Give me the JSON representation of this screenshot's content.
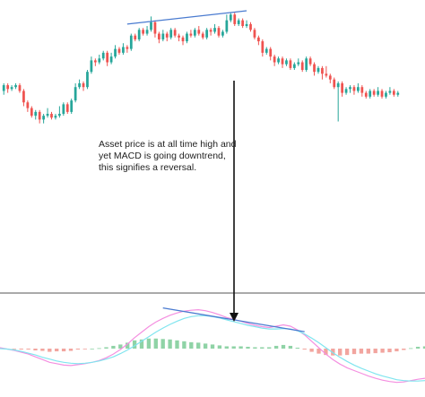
{
  "colors": {
    "background": "#ffffff",
    "bull": "#26a69a",
    "bear": "#ef5350",
    "trendline": "#4a7bd0",
    "arrow": "#111111",
    "separator": "#555555",
    "macd_line": "#f48fe0",
    "signal_line": "#80e5ef",
    "hist_positive": "#8fd3a6",
    "hist_negative": "#f2a59f"
  },
  "annotation": {
    "lines": [
      "Asset price is at all time high and",
      "yet MACD is going downtrend,",
      "this signifies a reversal."
    ]
  },
  "chart_data": [
    {
      "type": "candlestick",
      "title": "",
      "xlabel": "",
      "ylabel": "",
      "grid": false,
      "ylim": [
        0,
        100
      ],
      "candles": [
        {
          "o": 58,
          "c": 61,
          "h": 62,
          "l": 56
        },
        {
          "o": 61,
          "c": 59,
          "h": 62,
          "l": 57
        },
        {
          "o": 59,
          "c": 60,
          "h": 61,
          "l": 58
        },
        {
          "o": 60,
          "c": 61,
          "h": 62,
          "l": 59
        },
        {
          "o": 61,
          "c": 58,
          "h": 62,
          "l": 57
        },
        {
          "o": 58,
          "c": 52,
          "h": 59,
          "l": 50
        },
        {
          "o": 52,
          "c": 49,
          "h": 53,
          "l": 47
        },
        {
          "o": 49,
          "c": 45,
          "h": 50,
          "l": 44
        },
        {
          "o": 45,
          "c": 47,
          "h": 48,
          "l": 43
        },
        {
          "o": 47,
          "c": 43,
          "h": 48,
          "l": 41
        },
        {
          "o": 43,
          "c": 45,
          "h": 46,
          "l": 41
        },
        {
          "o": 45,
          "c": 46,
          "h": 49,
          "l": 44
        },
        {
          "o": 46,
          "c": 44,
          "h": 47,
          "l": 43
        },
        {
          "o": 44,
          "c": 45,
          "h": 46,
          "l": 43
        },
        {
          "o": 45,
          "c": 46,
          "h": 50,
          "l": 44
        },
        {
          "o": 46,
          "c": 51,
          "h": 52,
          "l": 45
        },
        {
          "o": 51,
          "c": 47,
          "h": 52,
          "l": 46
        },
        {
          "o": 47,
          "c": 53,
          "h": 54,
          "l": 46
        },
        {
          "o": 53,
          "c": 60,
          "h": 62,
          "l": 52
        },
        {
          "o": 60,
          "c": 62,
          "h": 64,
          "l": 59
        },
        {
          "o": 62,
          "c": 60,
          "h": 63,
          "l": 58
        },
        {
          "o": 60,
          "c": 68,
          "h": 69,
          "l": 59
        },
        {
          "o": 68,
          "c": 74,
          "h": 76,
          "l": 67
        },
        {
          "o": 74,
          "c": 73,
          "h": 75,
          "l": 71
        },
        {
          "o": 73,
          "c": 75,
          "h": 77,
          "l": 72
        },
        {
          "o": 75,
          "c": 78,
          "h": 79,
          "l": 74
        },
        {
          "o": 78,
          "c": 73,
          "h": 79,
          "l": 71
        },
        {
          "o": 73,
          "c": 76,
          "h": 78,
          "l": 72
        },
        {
          "o": 76,
          "c": 80,
          "h": 82,
          "l": 75
        },
        {
          "o": 80,
          "c": 78,
          "h": 81,
          "l": 77
        },
        {
          "o": 78,
          "c": 81,
          "h": 83,
          "l": 77
        },
        {
          "o": 81,
          "c": 80,
          "h": 82,
          "l": 78
        },
        {
          "o": 80,
          "c": 87,
          "h": 88,
          "l": 79
        },
        {
          "o": 87,
          "c": 85,
          "h": 88,
          "l": 84
        },
        {
          "o": 85,
          "c": 90,
          "h": 91,
          "l": 84
        },
        {
          "o": 90,
          "c": 88,
          "h": 91,
          "l": 87
        },
        {
          "o": 88,
          "c": 90,
          "h": 92,
          "l": 87
        },
        {
          "o": 90,
          "c": 94,
          "h": 97,
          "l": 89
        },
        {
          "o": 94,
          "c": 88,
          "h": 95,
          "l": 86
        },
        {
          "o": 88,
          "c": 85,
          "h": 89,
          "l": 83
        },
        {
          "o": 85,
          "c": 88,
          "h": 90,
          "l": 84
        },
        {
          "o": 88,
          "c": 86,
          "h": 89,
          "l": 84
        },
        {
          "o": 86,
          "c": 90,
          "h": 91,
          "l": 85
        },
        {
          "o": 90,
          "c": 87,
          "h": 91,
          "l": 86
        },
        {
          "o": 87,
          "c": 86,
          "h": 88,
          "l": 84
        },
        {
          "o": 86,
          "c": 84,
          "h": 87,
          "l": 82
        },
        {
          "o": 84,
          "c": 88,
          "h": 89,
          "l": 83
        },
        {
          "o": 88,
          "c": 87,
          "h": 90,
          "l": 86
        },
        {
          "o": 87,
          "c": 90,
          "h": 91,
          "l": 86
        },
        {
          "o": 90,
          "c": 88,
          "h": 92,
          "l": 87
        },
        {
          "o": 88,
          "c": 86,
          "h": 89,
          "l": 85
        },
        {
          "o": 86,
          "c": 90,
          "h": 91,
          "l": 85
        },
        {
          "o": 90,
          "c": 89,
          "h": 91,
          "l": 87
        },
        {
          "o": 89,
          "c": 91,
          "h": 93,
          "l": 88
        },
        {
          "o": 91,
          "c": 87,
          "h": 92,
          "l": 86
        },
        {
          "o": 87,
          "c": 89,
          "h": 90,
          "l": 86
        },
        {
          "o": 89,
          "c": 95,
          "h": 98,
          "l": 88
        },
        {
          "o": 95,
          "c": 98,
          "h": 99,
          "l": 94
        },
        {
          "o": 98,
          "c": 93,
          "h": 99,
          "l": 92
        },
        {
          "o": 93,
          "c": 95,
          "h": 96,
          "l": 92
        },
        {
          "o": 95,
          "c": 92,
          "h": 96,
          "l": 91
        },
        {
          "o": 92,
          "c": 93,
          "h": 95,
          "l": 91
        },
        {
          "o": 93,
          "c": 90,
          "h": 94,
          "l": 89
        },
        {
          "o": 90,
          "c": 86,
          "h": 91,
          "l": 85
        },
        {
          "o": 86,
          "c": 84,
          "h": 87,
          "l": 82
        },
        {
          "o": 84,
          "c": 78,
          "h": 85,
          "l": 76
        },
        {
          "o": 78,
          "c": 80,
          "h": 81,
          "l": 77
        },
        {
          "o": 80,
          "c": 76,
          "h": 81,
          "l": 74
        },
        {
          "o": 76,
          "c": 73,
          "h": 77,
          "l": 71
        },
        {
          "o": 73,
          "c": 75,
          "h": 76,
          "l": 72
        },
        {
          "o": 75,
          "c": 72,
          "h": 76,
          "l": 70
        },
        {
          "o": 72,
          "c": 74,
          "h": 75,
          "l": 71
        },
        {
          "o": 74,
          "c": 70,
          "h": 75,
          "l": 69
        },
        {
          "o": 70,
          "c": 72,
          "h": 73,
          "l": 69
        },
        {
          "o": 72,
          "c": 73,
          "h": 75,
          "l": 71
        },
        {
          "o": 73,
          "c": 69,
          "h": 74,
          "l": 68
        },
        {
          "o": 69,
          "c": 75,
          "h": 76,
          "l": 68
        },
        {
          "o": 75,
          "c": 72,
          "h": 76,
          "l": 71
        },
        {
          "o": 72,
          "c": 68,
          "h": 73,
          "l": 66
        },
        {
          "o": 68,
          "c": 70,
          "h": 71,
          "l": 67
        },
        {
          "o": 70,
          "c": 67,
          "h": 71,
          "l": 64
        },
        {
          "o": 67,
          "c": 66,
          "h": 71,
          "l": 65
        },
        {
          "o": 66,
          "c": 64,
          "h": 67,
          "l": 62
        },
        {
          "o": 64,
          "c": 60,
          "h": 65,
          "l": 59
        },
        {
          "o": 60,
          "c": 62,
          "h": 63,
          "l": 42
        },
        {
          "o": 62,
          "c": 57,
          "h": 63,
          "l": 55
        },
        {
          "o": 57,
          "c": 59,
          "h": 60,
          "l": 56
        },
        {
          "o": 59,
          "c": 60,
          "h": 61,
          "l": 57
        },
        {
          "o": 60,
          "c": 58,
          "h": 61,
          "l": 56
        },
        {
          "o": 58,
          "c": 60,
          "h": 62,
          "l": 57
        },
        {
          "o": 60,
          "c": 57,
          "h": 61,
          "l": 55
        },
        {
          "o": 57,
          "c": 55,
          "h": 58,
          "l": 54
        },
        {
          "o": 55,
          "c": 58,
          "h": 59,
          "l": 54
        },
        {
          "o": 58,
          "c": 56,
          "h": 59,
          "l": 55
        },
        {
          "o": 56,
          "c": 58,
          "h": 60,
          "l": 55
        },
        {
          "o": 58,
          "c": 55,
          "h": 59,
          "l": 54
        },
        {
          "o": 55,
          "c": 57,
          "h": 58,
          "l": 54
        },
        {
          "o": 57,
          "c": 58,
          "h": 60,
          "l": 56
        },
        {
          "o": 58,
          "c": 56,
          "h": 59,
          "l": 55
        },
        {
          "o": 56,
          "c": 57,
          "h": 58,
          "l": 55
        }
      ],
      "trendline": {
        "from": {
          "index": 31,
          "value": 93
        },
        "to": {
          "index": 61,
          "value": 100
        }
      }
    },
    {
      "type": "line",
      "title": "",
      "indicator": "MACD",
      "grid": false,
      "ylim": [
        -10,
        10
      ],
      "zero_line": true,
      "series": [
        {
          "values": [
            0.2,
            -0.1,
            -0.4,
            -0.8,
            -1.2,
            -1.8,
            -2.4,
            -3.0,
            -3.3,
            -3.6,
            -3.7,
            -3.5,
            -3.3,
            -3.0,
            -2.6,
            -2.0,
            -1.2,
            -0.2,
            1.0,
            2.4,
            3.6,
            4.8,
            5.8,
            6.6,
            7.3,
            7.8,
            8.2,
            8.4,
            8.5,
            8.3,
            7.9,
            7.4,
            6.8,
            6.4,
            6.0,
            5.5,
            5.1,
            4.8,
            4.6,
            4.9,
            5.2,
            4.9,
            4.1,
            3.0,
            1.6,
            0.2,
            -1.2,
            -2.4,
            -3.4,
            -4.2,
            -4.8,
            -5.4,
            -6.0,
            -6.5,
            -6.9,
            -7.2,
            -7.4,
            -7.3,
            -7.0,
            -6.7,
            -6.5
          ]
        },
        {
          "values": [
            0.0,
            -0.1,
            -0.3,
            -0.6,
            -1.0,
            -1.4,
            -1.9,
            -2.3,
            -2.7,
            -3.0,
            -3.2,
            -3.3,
            -3.2,
            -3.0,
            -2.7,
            -2.3,
            -1.8,
            -1.1,
            -0.3,
            0.6,
            1.6,
            2.6,
            3.6,
            4.5,
            5.3,
            6.0,
            6.6,
            7.0,
            7.2,
            7.2,
            7.0,
            6.7,
            6.3,
            5.9,
            5.5,
            5.1,
            4.8,
            4.5,
            4.3,
            4.3,
            4.4,
            4.3,
            3.9,
            3.2,
            2.3,
            1.3,
            0.2,
            -0.9,
            -1.9,
            -2.8,
            -3.6,
            -4.3,
            -4.9,
            -5.5,
            -6.0,
            -6.4,
            -6.8,
            -7.0,
            -7.1,
            -7.1,
            -7.0
          ]
        }
      ],
      "histogram": [
        0.2,
        0.0,
        -0.1,
        -0.2,
        -0.2,
        -0.4,
        -0.5,
        -0.7,
        -0.6,
        -0.6,
        -0.5,
        -0.2,
        -0.1,
        0.0,
        0.1,
        0.3,
        0.6,
        0.9,
        1.3,
        1.8,
        2.0,
        2.2,
        2.2,
        2.1,
        2.0,
        1.8,
        1.6,
        1.4,
        1.3,
        1.1,
        0.9,
        0.7,
        0.5,
        0.5,
        0.5,
        0.4,
        0.3,
        0.3,
        0.3,
        0.6,
        0.8,
        0.6,
        0.2,
        -0.2,
        -0.7,
        -1.1,
        -1.4,
        -1.5,
        -1.5,
        -1.4,
        -1.2,
        -1.1,
        -1.1,
        -1.0,
        -0.9,
        -0.8,
        -0.6,
        -0.3,
        0.1,
        0.4,
        0.5
      ],
      "trendline": {
        "from": {
          "index": 23,
          "value": 8.9
        },
        "to": {
          "index": 43,
          "value": 3.7
        }
      }
    }
  ]
}
